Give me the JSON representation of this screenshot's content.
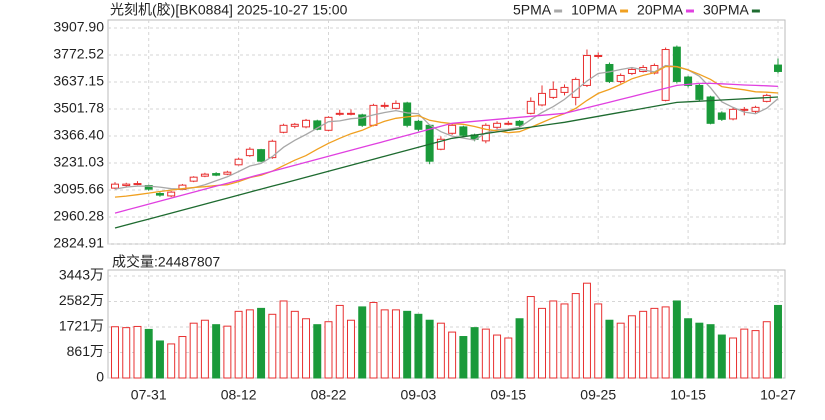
{
  "chart_data": {
    "type": "candlestick",
    "title": "光刻机(胶)[BK0884] 2025-10-27 15:00",
    "categories": [
      null,
      null,
      null,
      "07-31",
      null,
      null,
      null,
      null,
      null,
      null,
      null,
      "08-12",
      null,
      null,
      null,
      null,
      null,
      null,
      null,
      "08-22",
      null,
      null,
      null,
      null,
      null,
      null,
      null,
      "09-03",
      null,
      null,
      null,
      null,
      null,
      null,
      null,
      "09-15",
      null,
      null,
      null,
      null,
      null,
      null,
      null,
      "09-25",
      null,
      null,
      null,
      null,
      null,
      null,
      null,
      "10-15",
      null,
      null,
      null,
      null,
      null,
      null,
      null,
      "10-27"
    ],
    "open": [
      3105,
      3118,
      3125,
      3118,
      3078,
      3066,
      3098,
      3140,
      3165,
      3178,
      3175,
      3222,
      3268,
      3298,
      3258,
      3385,
      3415,
      3412,
      3442,
      3395,
      3475,
      3478,
      3472,
      3420,
      3515,
      3505,
      3532,
      3440,
      3420,
      3300,
      3380,
      3412,
      3372,
      3342,
      3410,
      3428,
      3440,
      3480,
      3522,
      3560,
      3585,
      3560,
      3620,
      3765,
      3725,
      3640,
      3680,
      3690,
      3682,
      3545,
      3812,
      3662,
      3620,
      3562,
      3482,
      3452,
      3498,
      3490,
      3540,
      3722
    ],
    "high": [
      3135,
      3132,
      3140,
      3122,
      3085,
      3090,
      3126,
      3165,
      3182,
      3185,
      3192,
      3258,
      3310,
      3302,
      3348,
      3428,
      3432,
      3452,
      3448,
      3465,
      3498,
      3500,
      3478,
      3528,
      3535,
      3545,
      3538,
      3448,
      3425,
      3365,
      3430,
      3418,
      3378,
      3430,
      3440,
      3442,
      3446,
      3560,
      3620,
      3640,
      3625,
      3660,
      3800,
      3785,
      3735,
      3680,
      3712,
      3722,
      3730,
      3810,
      3820,
      3668,
      3628,
      3568,
      3490,
      3508,
      3512,
      3518,
      3578,
      3755
    ],
    "low": [
      3100,
      3112,
      3120,
      3092,
      3062,
      3060,
      3095,
      3135,
      3160,
      3165,
      3170,
      3218,
      3262,
      3235,
      3252,
      3380,
      3405,
      3405,
      3395,
      3390,
      3468,
      3470,
      3412,
      3415,
      3505,
      3500,
      3410,
      3390,
      3225,
      3295,
      3372,
      3362,
      3340,
      3330,
      3402,
      3420,
      3412,
      3475,
      3515,
      3552,
      3570,
      3520,
      3612,
      3755,
      3632,
      3630,
      3672,
      3685,
      3675,
      3540,
      3630,
      3610,
      3542,
      3425,
      3442,
      3445,
      3470,
      3478,
      3535,
      3680
    ],
    "close": [
      3125,
      3125,
      3128,
      3100,
      3070,
      3085,
      3120,
      3160,
      3175,
      3170,
      3185,
      3250,
      3300,
      3240,
      3340,
      3420,
      3425,
      3445,
      3400,
      3460,
      3480,
      3480,
      3420,
      3520,
      3520,
      3530,
      3420,
      3400,
      3240,
      3350,
      3420,
      3370,
      3350,
      3420,
      3430,
      3430,
      3420,
      3540,
      3580,
      3600,
      3610,
      3650,
      3770,
      3770,
      3640,
      3670,
      3700,
      3710,
      3720,
      3800,
      3640,
      3620,
      3550,
      3430,
      3450,
      3500,
      3500,
      3510,
      3570,
      3690
    ],
    "up_color": "#e83030",
    "down_color": "#1a9a3a",
    "series": [
      {
        "name": "5PMA",
        "color": "#a8a8a8",
        "values": [
          3100,
          3110,
          3115,
          3115,
          3110,
          3102,
          3100,
          3107,
          3122,
          3142,
          3162,
          3188,
          3216,
          3229,
          3263,
          3310,
          3345,
          3374,
          3406,
          3438,
          3442,
          3453,
          3457,
          3472,
          3484,
          3494,
          3482,
          3478,
          3422,
          3388,
          3366,
          3356,
          3346,
          3382,
          3398,
          3400,
          3410,
          3448,
          3484,
          3514,
          3550,
          3596,
          3642,
          3680,
          3688,
          3700,
          3710,
          3698,
          3688,
          3720,
          3714,
          3698,
          3666,
          3608,
          3538,
          3510,
          3486,
          3478,
          3506,
          3554
        ]
      },
      {
        "name": "10PMA",
        "color": "#f0a020",
        "values": [
          3060,
          3065,
          3072,
          3080,
          3088,
          3095,
          3102,
          3108,
          3112,
          3118,
          3122,
          3138,
          3158,
          3170,
          3190,
          3218,
          3245,
          3268,
          3300,
          3330,
          3355,
          3378,
          3395,
          3420,
          3440,
          3455,
          3462,
          3468,
          3445,
          3435,
          3428,
          3425,
          3414,
          3400,
          3392,
          3383,
          3388,
          3410,
          3434,
          3458,
          3478,
          3505,
          3545,
          3580,
          3600,
          3625,
          3653,
          3670,
          3684,
          3715,
          3714,
          3698,
          3676,
          3650,
          3614,
          3605,
          3598,
          3588,
          3586,
          3582
        ]
      },
      {
        "name": "20PMA",
        "color": "#e040e0",
        "values": [
          2980,
          2995,
          3010,
          3025,
          3040,
          3055,
          3070,
          3085,
          3100,
          3115,
          3130,
          3145,
          3160,
          3175,
          3190,
          3205,
          3220,
          3235,
          3250,
          3265,
          3280,
          3295,
          3310,
          3325,
          3340,
          3355,
          3370,
          3385,
          3400,
          3415,
          3430,
          3435,
          3440,
          3445,
          3450,
          3455,
          3460,
          3465,
          3470,
          3475,
          3480,
          3494,
          3508,
          3522,
          3536,
          3550,
          3564,
          3578,
          3592,
          3606,
          3620,
          3625,
          3630,
          3630,
          3628,
          3625,
          3622,
          3620,
          3618,
          3615
        ]
      },
      {
        "name": "30PMA",
        "color": "#1e6b30",
        "values": [
          2905,
          2920,
          2935,
          2950,
          2965,
          2980,
          2995,
          3010,
          3025,
          3040,
          3055,
          3070,
          3085,
          3100,
          3115,
          3130,
          3145,
          3160,
          3175,
          3190,
          3205,
          3220,
          3235,
          3250,
          3265,
          3280,
          3295,
          3310,
          3325,
          3340,
          3355,
          3363,
          3371,
          3379,
          3387,
          3395,
          3403,
          3411,
          3419,
          3427,
          3435,
          3445,
          3455,
          3465,
          3475,
          3485,
          3495,
          3505,
          3515,
          3525,
          3535,
          3538,
          3541,
          3544,
          3547,
          3550,
          3553,
          3556,
          3559,
          3562
        ]
      }
    ],
    "ylim": [
      2824.91,
      3907.9
    ],
    "yticks": [
      {
        "value": 3907.9,
        "label": "3907.90"
      },
      3772.52,
      3637.15,
      3501.78,
      {
        "value": 3366.4,
        "label": "3366.40"
      },
      3231.03,
      3095.66,
      2960.28,
      2824.91
    ],
    "grid": true,
    "volume": {
      "title": "成交量:24487807",
      "values": [
        1730,
        1700,
        1740,
        1640,
        1250,
        1150,
        1400,
        1850,
        1950,
        1800,
        1750,
        2250,
        2300,
        2350,
        2150,
        2600,
        2250,
        2000,
        1800,
        1900,
        2450,
        1950,
        2400,
        2550,
        2300,
        2300,
        2250,
        2150,
        1950,
        1850,
        1550,
        1400,
        1700,
        1650,
        1450,
        1350,
        2000,
        2750,
        2350,
        2600,
        2500,
        2850,
        3200,
        2500,
        1950,
        1850,
        2100,
        2250,
        2350,
        2400,
        2600,
        2000,
        1850,
        1800,
        1450,
        1350,
        1650,
        1600,
        1900,
        2448.7807
      ],
      "ylim": [
        0,
        3443
      ],
      "yticks": [
        0,
        {
          "value": 861,
          "label": "861万"
        },
        {
          "value": 1721,
          "label": "1721万"
        },
        {
          "value": 2582,
          "label": "2582万"
        },
        {
          "value": 3443,
          "label": "3443万"
        }
      ]
    }
  }
}
